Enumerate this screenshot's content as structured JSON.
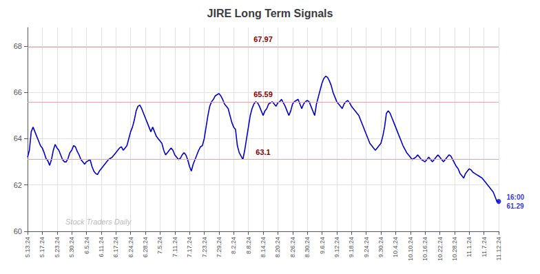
{
  "chart_data": {
    "type": "line",
    "title": "JIRE Long Term Signals",
    "categories": [
      "5.13.24",
      null,
      null,
      null,
      null,
      null,
      null,
      null,
      "5.17.24",
      null,
      null,
      null,
      null,
      null,
      null,
      null,
      "5.23.24",
      null,
      null,
      null,
      null,
      null,
      null,
      null,
      "5.30.24",
      null,
      null,
      null,
      null,
      null,
      null,
      null,
      "6.5.24",
      null,
      null,
      null,
      null,
      null,
      null,
      null,
      "6.11.24",
      null,
      null,
      null,
      null,
      null,
      null,
      null,
      "6.17.24",
      null,
      null,
      null,
      null,
      null,
      null,
      null,
      "6.24.24",
      null,
      null,
      null,
      null,
      null,
      null,
      null,
      "6.28.24",
      null,
      null,
      null,
      null,
      null,
      null,
      null,
      "7.5.24",
      null,
      null,
      null,
      null,
      null,
      null,
      null,
      "7.11.24",
      null,
      null,
      null,
      null,
      null,
      null,
      null,
      "7.17.24",
      null,
      null,
      null,
      null,
      null,
      null,
      null,
      "7.23.24",
      null,
      null,
      null,
      null,
      null,
      null,
      null,
      "7.29.24",
      null,
      null,
      null,
      null,
      null,
      null,
      null,
      "8.2.24",
      null,
      null,
      null,
      null,
      null,
      null,
      null,
      "8.8.24",
      null,
      null,
      null,
      null,
      null,
      null,
      null,
      "8.14.24",
      null,
      null,
      null,
      null,
      null,
      null,
      null,
      "8.20.24",
      null,
      null,
      null,
      null,
      null,
      null,
      null,
      "8.26.24",
      null,
      null,
      null,
      null,
      null,
      null,
      null,
      "8.30.24",
      null,
      null,
      null,
      null,
      null,
      null,
      null,
      "9.6.24",
      null,
      null,
      null,
      null,
      null,
      null,
      null,
      "9.12.24",
      null,
      null,
      null,
      null,
      null,
      null,
      null,
      "9.18.24",
      null,
      null,
      null,
      null,
      null,
      null,
      null,
      "9.24.24",
      null,
      null,
      null,
      null,
      null,
      null,
      null,
      "9.30.24",
      null,
      null,
      null,
      null,
      null,
      null,
      null,
      "10.4.24",
      null,
      null,
      null,
      null,
      null,
      null,
      null,
      "10.10.24",
      null,
      null,
      null,
      null,
      null,
      null,
      null,
      "10.16.24",
      null,
      null,
      null,
      null,
      null,
      null,
      null,
      "10.22.24",
      null,
      null,
      null,
      null,
      null,
      null,
      null,
      "10.28.24",
      null,
      null,
      null,
      null,
      null,
      null,
      null,
      "11.1.24",
      null,
      null,
      null,
      null,
      null,
      null,
      null,
      "11.7.24",
      null,
      null,
      null,
      null,
      null,
      null,
      null,
      "11.12.24"
    ],
    "values": [
      63.2,
      63.5,
      64.3,
      64.5,
      64.3,
      64.1,
      63.9,
      63.7,
      63.6,
      63.4,
      63.15,
      63.05,
      62.85,
      63.1,
      63.5,
      63.75,
      63.6,
      63.5,
      63.3,
      63.1,
      63.0,
      63.0,
      63.15,
      63.4,
      63.5,
      63.7,
      63.65,
      63.45,
      63.3,
      63.1,
      63.0,
      62.9,
      63.0,
      63.05,
      63.1,
      62.8,
      62.6,
      62.5,
      62.45,
      62.6,
      62.7,
      62.8,
      62.9,
      63.0,
      63.1,
      63.15,
      63.2,
      63.3,
      63.4,
      63.5,
      63.6,
      63.65,
      63.5,
      63.6,
      63.7,
      64.0,
      64.3,
      64.5,
      64.8,
      65.2,
      65.4,
      65.45,
      65.3,
      65.1,
      64.9,
      64.7,
      64.5,
      64.3,
      64.5,
      64.3,
      64.1,
      64.0,
      63.9,
      63.8,
      63.5,
      63.3,
      63.4,
      63.5,
      63.6,
      63.5,
      63.3,
      63.2,
      63.1,
      63.15,
      63.3,
      63.4,
      63.3,
      63.1,
      62.8,
      62.6,
      62.9,
      63.1,
      63.3,
      63.5,
      63.65,
      63.7,
      64.0,
      64.5,
      65.0,
      65.4,
      65.6,
      65.7,
      65.85,
      65.9,
      65.95,
      65.85,
      65.7,
      65.5,
      65.4,
      65.3,
      65.0,
      64.7,
      64.5,
      64.4,
      63.7,
      63.4,
      63.25,
      63.1,
      63.5,
      64.0,
      64.5,
      65.0,
      65.3,
      65.5,
      65.6,
      65.55,
      65.4,
      65.2,
      65.0,
      65.2,
      65.3,
      65.5,
      65.55,
      65.6,
      65.5,
      65.4,
      65.55,
      65.6,
      65.7,
      65.55,
      65.4,
      65.2,
      65.0,
      65.2,
      65.5,
      65.6,
      65.65,
      65.7,
      65.5,
      65.3,
      65.5,
      65.6,
      65.65,
      65.6,
      65.4,
      65.2,
      65.0,
      65.5,
      65.8,
      66.1,
      66.4,
      66.6,
      66.7,
      66.65,
      66.5,
      66.3,
      66.0,
      65.8,
      65.6,
      65.5,
      65.4,
      65.3,
      65.5,
      65.6,
      65.65,
      65.55,
      65.4,
      65.3,
      65.2,
      65.1,
      65.0,
      64.8,
      64.6,
      64.4,
      64.2,
      64.0,
      63.8,
      63.7,
      63.6,
      63.5,
      63.6,
      63.7,
      63.8,
      64.1,
      64.5,
      65.1,
      65.2,
      65.1,
      64.9,
      64.7,
      64.5,
      64.3,
      64.1,
      63.9,
      63.7,
      63.55,
      63.4,
      63.3,
      63.2,
      63.1,
      63.15,
      63.2,
      63.3,
      63.2,
      63.1,
      63.05,
      63.0,
      63.1,
      63.2,
      63.1,
      63.0,
      63.1,
      63.2,
      63.3,
      63.2,
      63.1,
      63.0,
      63.1,
      63.2,
      63.3,
      63.25,
      63.1,
      62.95,
      62.8,
      62.7,
      62.5,
      62.4,
      62.3,
      62.5,
      62.6,
      62.7,
      62.65,
      62.55,
      62.5,
      62.45,
      62.4,
      62.35,
      62.3,
      62.2,
      62.1,
      62.0,
      61.9,
      61.8,
      61.7,
      61.5,
      61.3,
      61.29
    ],
    "color": "#0000cc",
    "ylim": [
      60,
      68.8
    ],
    "yticks": [
      60,
      62,
      64,
      66,
      68
    ],
    "grid": true,
    "hlines": [
      67.97,
      65.59,
      63.1
    ],
    "hline_color": "#f0a0a0",
    "hline_label_color": "#8b0000",
    "last_point": {
      "value": 61.29,
      "label": "16:00\n61.29",
      "color": "#0000cc"
    },
    "watermark": {
      "text": "Stock Traders Daily",
      "color": "#bbbbbb"
    }
  }
}
